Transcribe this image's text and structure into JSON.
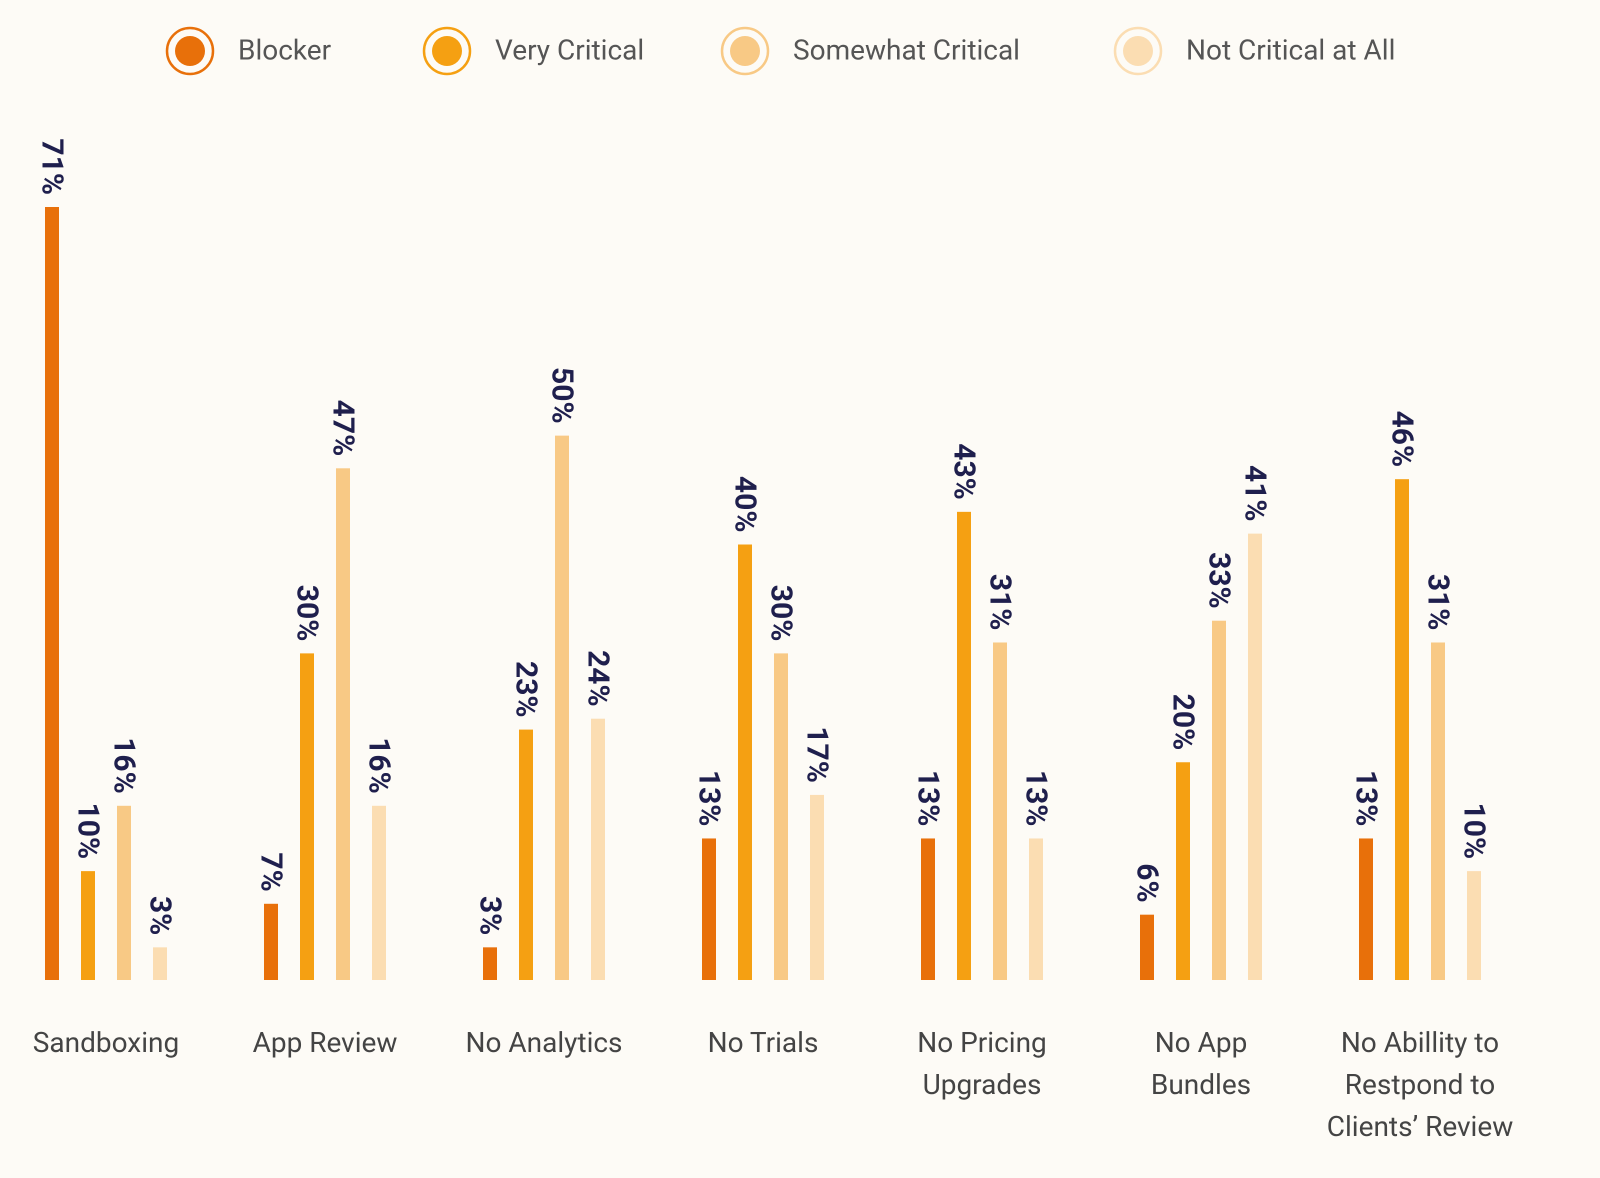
{
  "chart_data": {
    "type": "bar",
    "categories": [
      "Sandboxing",
      "App Review",
      "No Analytics",
      "No Trials",
      "No Pricing\nUpgrades",
      "No App\nBundles",
      "No Abillity to\nRestpond to\nClients’ Review"
    ],
    "series": [
      {
        "name": "Blocker",
        "color": "#e8700a",
        "values": [
          71,
          7,
          3,
          13,
          13,
          6,
          13
        ],
        "value_labels": [
          "71%",
          "7%",
          "3%",
          "13%",
          "13%",
          "6%",
          "13%"
        ]
      },
      {
        "name": "Very Critical",
        "color": "#f5a012",
        "values": [
          10,
          30,
          23,
          40,
          43,
          20,
          46
        ],
        "value_labels": [
          "10%",
          "30%",
          "23%",
          "40%",
          "43%",
          "20%",
          "46%"
        ]
      },
      {
        "name": "Somewhat Critical",
        "color": "#f8c985",
        "values": [
          16,
          47,
          50,
          30,
          31,
          33,
          31
        ],
        "value_labels": [
          "16%",
          "47%",
          "50%",
          "30%",
          "31%",
          "33%",
          "31%"
        ]
      },
      {
        "name": "Not Critical at All",
        "color": "#fbddb2",
        "values": [
          3,
          16,
          24,
          17,
          13,
          41,
          10
        ],
        "value_labels": [
          "3%",
          "16%",
          "24%",
          "17%",
          "13%",
          "41%",
          "10%"
        ]
      }
    ]
  }
}
